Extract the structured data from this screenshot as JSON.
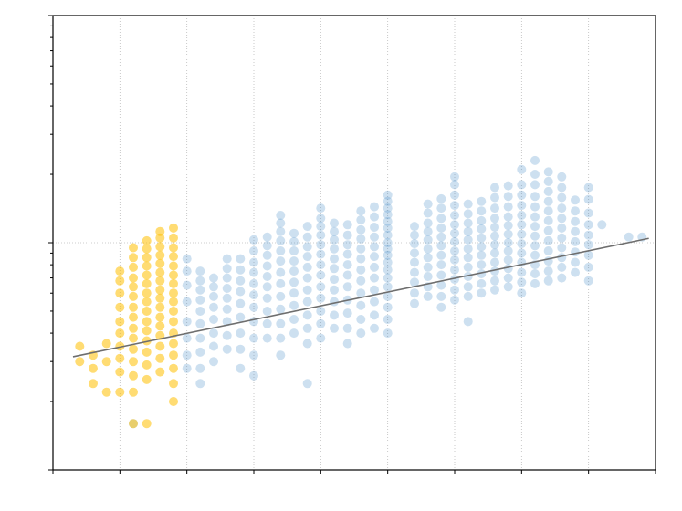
{
  "chart_data": {
    "type": "scatter",
    "title": "",
    "xlabel": "",
    "ylabel": "",
    "yscale": "log",
    "grid": {
      "vertical": true,
      "horizontal_single_line_at_y": 1.0,
      "style": "dotted"
    },
    "xlim": [
      0,
      9
    ],
    "ylim": [
      0.1,
      10
    ],
    "x_ticks": [
      0,
      1,
      2,
      3,
      4,
      5,
      6,
      7,
      8,
      9
    ],
    "colors": {
      "highlight": "#FFC000",
      "base": "#4A90C8",
      "trend": "#6E6E6E"
    },
    "series": [
      {
        "role": "highlight",
        "columns": [
          {
            "x": 0.4,
            "y": [
              0.3,
              0.35
            ]
          },
          {
            "x": 0.6,
            "y": [
              0.24,
              0.28,
              0.32
            ]
          },
          {
            "x": 0.8,
            "y": [
              0.22,
              0.3,
              0.36
            ]
          },
          {
            "x": 1.0,
            "y": [
              0.22,
              0.27,
              0.31,
              0.35,
              0.4,
              0.45,
              0.52,
              0.6,
              0.68,
              0.75
            ]
          },
          {
            "x": 1.2,
            "y": [
              0.16,
              0.22,
              0.26,
              0.3,
              0.34,
              0.38,
              0.42,
              0.47,
              0.52,
              0.58,
              0.64,
              0.7,
              0.78,
              0.86,
              0.95
            ]
          },
          {
            "x": 1.4,
            "y": [
              0.16,
              0.25,
              0.29,
              0.33,
              0.37,
              0.41,
              0.45,
              0.5,
              0.55,
              0.6,
              0.66,
              0.72,
              0.79,
              0.86,
              0.94,
              1.02
            ]
          },
          {
            "x": 1.6,
            "y": [
              0.27,
              0.31,
              0.35,
              0.39,
              0.43,
              0.47,
              0.52,
              0.57,
              0.62,
              0.68,
              0.74,
              0.81,
              0.88,
              0.96,
              1.05,
              1.12
            ]
          },
          {
            "x": 1.8,
            "y": [
              0.2,
              0.24,
              0.28,
              0.32,
              0.36,
              0.4,
              0.45,
              0.5,
              0.55,
              0.6,
              0.66,
              0.72,
              0.79,
              0.87,
              0.95,
              1.05,
              1.16
            ]
          }
        ]
      },
      {
        "role": "base",
        "columns": [
          {
            "x": 1.2,
            "y": [
              0.16
            ]
          },
          {
            "x": 2.0,
            "y": [
              0.28,
              0.32,
              0.38,
              0.45,
              0.55,
              0.65,
              0.75,
              0.85
            ]
          },
          {
            "x": 2.2,
            "y": [
              0.24,
              0.28,
              0.33,
              0.38,
              0.44,
              0.5,
              0.56,
              0.62,
              0.68,
              0.75
            ]
          },
          {
            "x": 2.4,
            "y": [
              0.3,
              0.35,
              0.4,
              0.46,
              0.52,
              0.58,
              0.64,
              0.7
            ]
          },
          {
            "x": 2.6,
            "y": [
              0.34,
              0.39,
              0.45,
              0.51,
              0.57,
              0.63,
              0.7,
              0.77,
              0.85
            ]
          },
          {
            "x": 2.8,
            "y": [
              0.28,
              0.34,
              0.4,
              0.47,
              0.54,
              0.61,
              0.68,
              0.76,
              0.85
            ]
          },
          {
            "x": 3.0,
            "y": [
              0.26,
              0.32,
              0.38,
              0.45,
              0.52,
              0.59,
              0.66,
              0.74,
              0.82,
              0.92,
              1.03
            ]
          },
          {
            "x": 3.2,
            "y": [
              0.38,
              0.44,
              0.5,
              0.57,
              0.64,
              0.71,
              0.79,
              0.88,
              0.97,
              1.06
            ]
          },
          {
            "x": 3.4,
            "y": [
              0.32,
              0.38,
              0.44,
              0.51,
              0.58,
              0.66,
              0.74,
              0.83,
              0.92,
              1.02,
              1.12,
              1.22,
              1.32
            ]
          },
          {
            "x": 3.6,
            "y": [
              0.4,
              0.46,
              0.53,
              0.6,
              0.67,
              0.75,
              0.83,
              0.92,
              1.01,
              1.1
            ]
          },
          {
            "x": 3.8,
            "y": [
              0.24,
              0.36,
              0.42,
              0.48,
              0.55,
              0.62,
              0.7,
              0.78,
              0.87,
              0.96,
              1.06,
              1.18
            ]
          },
          {
            "x": 4.0,
            "y": [
              0.38,
              0.44,
              0.5,
              0.57,
              0.64,
              0.72,
              0.8,
              0.89,
              0.98,
              1.08,
              1.18,
              1.28,
              1.42
            ]
          },
          {
            "x": 4.2,
            "y": [
              0.42,
              0.48,
              0.55,
              0.62,
              0.69,
              0.77,
              0.85,
              0.94,
              1.03,
              1.12,
              1.22
            ]
          },
          {
            "x": 4.4,
            "y": [
              0.36,
              0.42,
              0.49,
              0.56,
              0.64,
              0.72,
              0.8,
              0.89,
              0.98,
              1.08,
              1.2
            ]
          },
          {
            "x": 4.6,
            "y": [
              0.4,
              0.46,
              0.53,
              0.6,
              0.68,
              0.76,
              0.85,
              0.94,
              1.04,
              1.14,
              1.26,
              1.38
            ]
          },
          {
            "x": 4.8,
            "y": [
              0.42,
              0.48,
              0.55,
              0.62,
              0.7,
              0.78,
              0.87,
              0.96,
              1.06,
              1.17,
              1.3,
              1.44
            ]
          },
          {
            "x": 5.0,
            "y": [
              0.4,
              0.46,
              0.52,
              0.58,
              0.64,
              0.7,
              0.76,
              0.82,
              0.88,
              0.94,
              1.0,
              1.08,
              1.16,
              1.24,
              1.33,
              1.42,
              1.52,
              1.62
            ]
          },
          {
            "x": 5.4,
            "y": [
              0.54,
              0.6,
              0.67,
              0.74,
              0.82,
              0.9,
              0.99,
              1.08,
              1.18
            ]
          },
          {
            "x": 5.6,
            "y": [
              0.58,
              0.64,
              0.71,
              0.78,
              0.86,
              0.94,
              1.03,
              1.12,
              1.22,
              1.35,
              1.48
            ]
          },
          {
            "x": 5.8,
            "y": [
              0.52,
              0.58,
              0.65,
              0.72,
              0.8,
              0.88,
              0.97,
              1.06,
              1.16,
              1.28,
              1.42,
              1.56
            ]
          },
          {
            "x": 6.0,
            "y": [
              0.56,
              0.62,
              0.69,
              0.76,
              0.84,
              0.92,
              1.01,
              1.1,
              1.2,
              1.32,
              1.46,
              1.62,
              1.8,
              1.95
            ]
          },
          {
            "x": 6.2,
            "y": [
              0.45,
              0.58,
              0.64,
              0.71,
              0.78,
              0.86,
              0.94,
              1.03,
              1.12,
              1.22,
              1.34,
              1.48
            ]
          },
          {
            "x": 6.4,
            "y": [
              0.6,
              0.66,
              0.73,
              0.8,
              0.88,
              0.96,
              1.05,
              1.15,
              1.25,
              1.38,
              1.52
            ]
          },
          {
            "x": 6.6,
            "y": [
              0.62,
              0.68,
              0.75,
              0.82,
              0.9,
              0.98,
              1.07,
              1.17,
              1.28,
              1.42,
              1.58,
              1.75
            ]
          },
          {
            "x": 6.8,
            "y": [
              0.64,
              0.7,
              0.77,
              0.84,
              0.92,
              1.0,
              1.09,
              1.19,
              1.3,
              1.44,
              1.6,
              1.78
            ]
          },
          {
            "x": 7.0,
            "y": [
              0.6,
              0.67,
              0.74,
              0.82,
              0.9,
              0.99,
              1.09,
              1.2,
              1.32,
              1.46,
              1.62,
              1.8,
              2.1
            ]
          },
          {
            "x": 7.2,
            "y": [
              0.66,
              0.73,
              0.8,
              0.88,
              0.97,
              1.07,
              1.18,
              1.3,
              1.44,
              1.6,
              1.8,
              2.0,
              2.3
            ]
          },
          {
            "x": 7.4,
            "y": [
              0.68,
              0.75,
              0.83,
              0.92,
              1.02,
              1.13,
              1.25,
              1.38,
              1.52,
              1.68,
              1.86,
              2.05
            ]
          },
          {
            "x": 7.6,
            "y": [
              0.7,
              0.78,
              0.86,
              0.95,
              1.05,
              1.16,
              1.28,
              1.42,
              1.58,
              1.75,
              1.95
            ]
          },
          {
            "x": 7.8,
            "y": [
              0.74,
              0.82,
              0.91,
              1.01,
              1.12,
              1.24,
              1.38,
              1.54
            ]
          },
          {
            "x": 8.0,
            "y": [
              0.68,
              0.78,
              0.88,
              0.98,
              1.08,
              1.2,
              1.35,
              1.55,
              1.75
            ]
          },
          {
            "x": 8.2,
            "y": [
              1.2
            ]
          },
          {
            "x": 8.6,
            "y": [
              1.06
            ]
          },
          {
            "x": 8.8,
            "y": [
              1.06
            ]
          }
        ]
      }
    ],
    "trendline": {
      "x": [
        0.3,
        8.9
      ],
      "y": [
        0.315,
        1.045
      ]
    }
  }
}
